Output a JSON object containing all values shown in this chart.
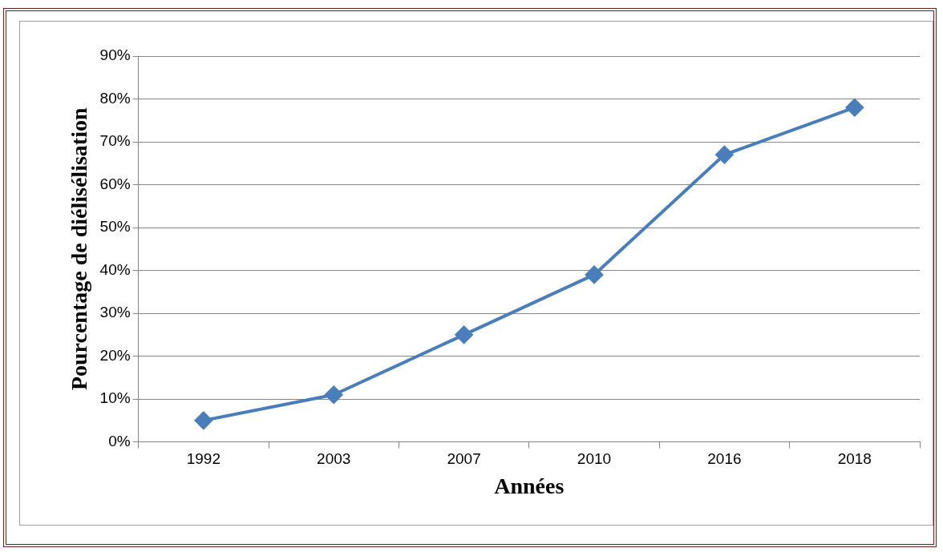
{
  "chart_data": {
    "type": "line",
    "xlabel": "Années",
    "ylabel": "Pourcentage de diélisélisation",
    "categories": [
      "1992",
      "2003",
      "2007",
      "2010",
      "2016",
      "2018"
    ],
    "series": [
      {
        "color": "#4a7ebb",
        "values": [
          5,
          11,
          25,
          39,
          67,
          78
        ]
      }
    ],
    "ylim": [
      0,
      90
    ],
    "yticks": [
      {
        "value": 0,
        "label": "0%"
      },
      {
        "value": 10,
        "label": "10%"
      },
      {
        "value": 20,
        "label": "20%"
      },
      {
        "value": 30,
        "label": "30%"
      },
      {
        "value": 40,
        "label": "40%"
      },
      {
        "value": 50,
        "label": "50%"
      },
      {
        "value": 60,
        "label": "60%"
      },
      {
        "value": 70,
        "label": "70%"
      },
      {
        "value": 80,
        "label": "80%"
      },
      {
        "value": 90,
        "label": "90%"
      }
    ],
    "grid": "y",
    "legend": false,
    "marker": "diamond",
    "line_style": "solid"
  }
}
